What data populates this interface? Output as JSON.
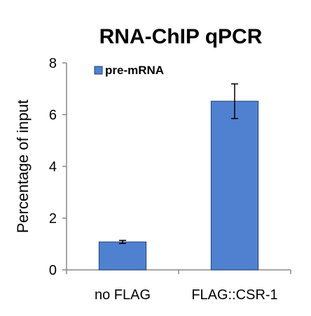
{
  "chart_data": {
    "type": "bar",
    "title": "RNA-ChIP qPCR",
    "xlabel": "",
    "ylabel": "Percentage of input",
    "categories": [
      "no FLAG",
      "FLAG::CSR-1"
    ],
    "series": [
      {
        "name": "pre-mRNA",
        "values": [
          1.08,
          6.52
        ],
        "error": [
          0.06,
          0.67
        ],
        "color": "#4f81d0"
      }
    ],
    "ylim": [
      0,
      8
    ],
    "yticks": [
      0,
      2,
      4,
      6,
      8
    ],
    "legend": "top-left",
    "grid": false
  }
}
